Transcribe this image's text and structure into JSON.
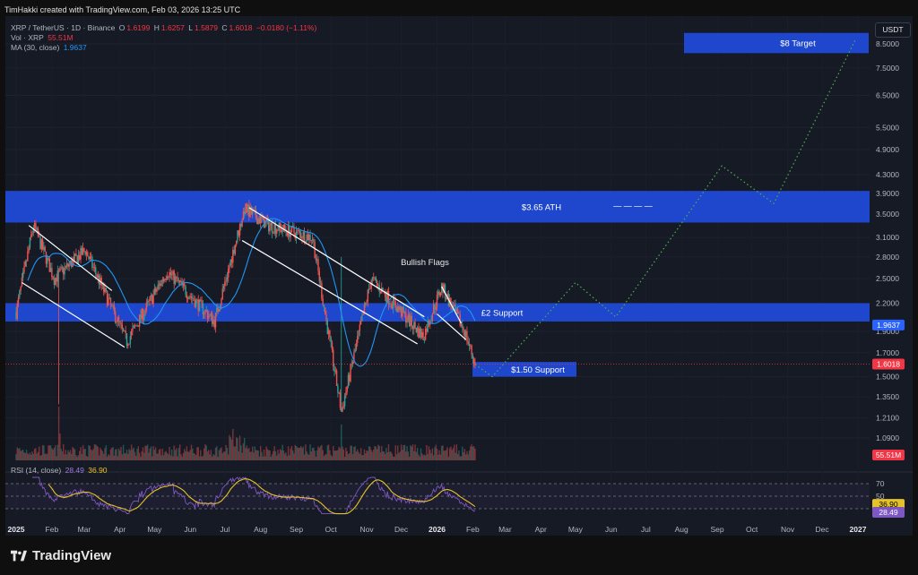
{
  "header": {
    "created_by": "TimHakki created with TradingView.com, Feb 03, 2026 13:25 UTC"
  },
  "legend": {
    "symbol": "XRP / TetherUS · 1D · Binance",
    "open_label": "O",
    "open": "1.6199",
    "high_label": "H",
    "high": "1.6257",
    "low_label": "L",
    "low": "1.5879",
    "close_label": "C",
    "close": "1.6018",
    "change": "−0.0180 (−1.11%)",
    "vol_label": "Vol · XRP",
    "vol_value": "55.51M",
    "ma_label": "MA (30, close)",
    "ma_value": "1.9637"
  },
  "rsi_legend": {
    "label": "RSI (14, close)",
    "rsi": "28.49",
    "ma": "36.90"
  },
  "currency_button": "USDT",
  "brand": "TradingView",
  "colors": {
    "background": "#161a25",
    "zone_blue": "#1f4bdb",
    "candle_up": "#ef5350",
    "candle_down": "#ef5350",
    "ma_line": "#2196f3",
    "projection": "#4caf50",
    "rsi_line": "#7e57c2",
    "rsi_ma": "#e6c229",
    "price_tag": "#f23645",
    "ma_tag": "#2962ff",
    "vol_tag": "#f23645"
  },
  "chart_data": {
    "type": "candlestick",
    "scale": "log",
    "price_axis_ticks": [
      "8.5000",
      "7.5000",
      "6.5000",
      "5.5000",
      "4.9000",
      "4.3000",
      "3.9000",
      "3.5000",
      "3.1000",
      "2.8000",
      "2.5000",
      "2.2000",
      "1.9000",
      "1.7000",
      "1.5000",
      "1.3500",
      "1.2100",
      "1.0900"
    ],
    "time_axis_labels": [
      "2025",
      "Feb",
      "Mar",
      "Apr",
      "May",
      "Jun",
      "Jul",
      "Aug",
      "Sep",
      "Oct",
      "Nov",
      "Dec",
      "2026",
      "Feb",
      "Mar",
      "Apr",
      "May",
      "Jun",
      "Jul",
      "Aug",
      "Sep",
      "Oct",
      "Nov",
      "Dec",
      "2027"
    ],
    "zones": [
      {
        "label": "$8 Target",
        "low": 8.1,
        "high": 9.0
      },
      {
        "label": "$3.65 ATH",
        "low": 3.35,
        "high": 3.95
      },
      {
        "label": "£2 Support",
        "low": 2.0,
        "high": 2.2
      },
      {
        "label": "$1.50 Support",
        "low": 1.5,
        "high": 1.62
      }
    ],
    "annotations": [
      "Bullish Flags",
      "— — — —"
    ],
    "price_key_points": [
      {
        "date": "2025-01-01",
        "price": 2.1
      },
      {
        "date": "2025-01-16",
        "price": 3.3
      },
      {
        "date": "2025-02-03",
        "price": 2.5
      },
      {
        "date": "2025-03-02",
        "price": 2.9
      },
      {
        "date": "2025-04-07",
        "price": 1.8
      },
      {
        "date": "2025-05-12",
        "price": 2.6
      },
      {
        "date": "2025-06-22",
        "price": 2.0
      },
      {
        "date": "2025-07-18",
        "price": 3.6
      },
      {
        "date": "2025-08-08",
        "price": 3.3
      },
      {
        "date": "2025-09-15",
        "price": 3.1
      },
      {
        "date": "2025-10-10",
        "price": 1.25
      },
      {
        "date": "2025-11-05",
        "price": 2.5
      },
      {
        "date": "2025-12-20",
        "price": 1.85
      },
      {
        "date": "2026-01-05",
        "price": 2.4
      },
      {
        "date": "2026-01-25",
        "price": 1.9
      },
      {
        "date": "2026-02-03",
        "price": 1.6018
      }
    ],
    "projection_path": [
      {
        "date": "2026-02-03",
        "price": 1.6
      },
      {
        "date": "2026-02-18",
        "price": 1.5
      },
      {
        "date": "2026-05-01",
        "price": 2.45
      },
      {
        "date": "2026-06-05",
        "price": 2.05
      },
      {
        "date": "2026-09-05",
        "price": 4.5
      },
      {
        "date": "2026-10-20",
        "price": 3.7
      },
      {
        "date": "2026-12-30",
        "price": 8.7
      }
    ],
    "rsi_levels": [
      70,
      50,
      30
    ],
    "rsi_axis_ticks": [
      "70",
      "50",
      "30"
    ],
    "current": {
      "price": "1.6018",
      "ma": "1.9637",
      "volume": "55.51M",
      "rsi": "28.49",
      "rsi_ma": "36.90"
    }
  }
}
